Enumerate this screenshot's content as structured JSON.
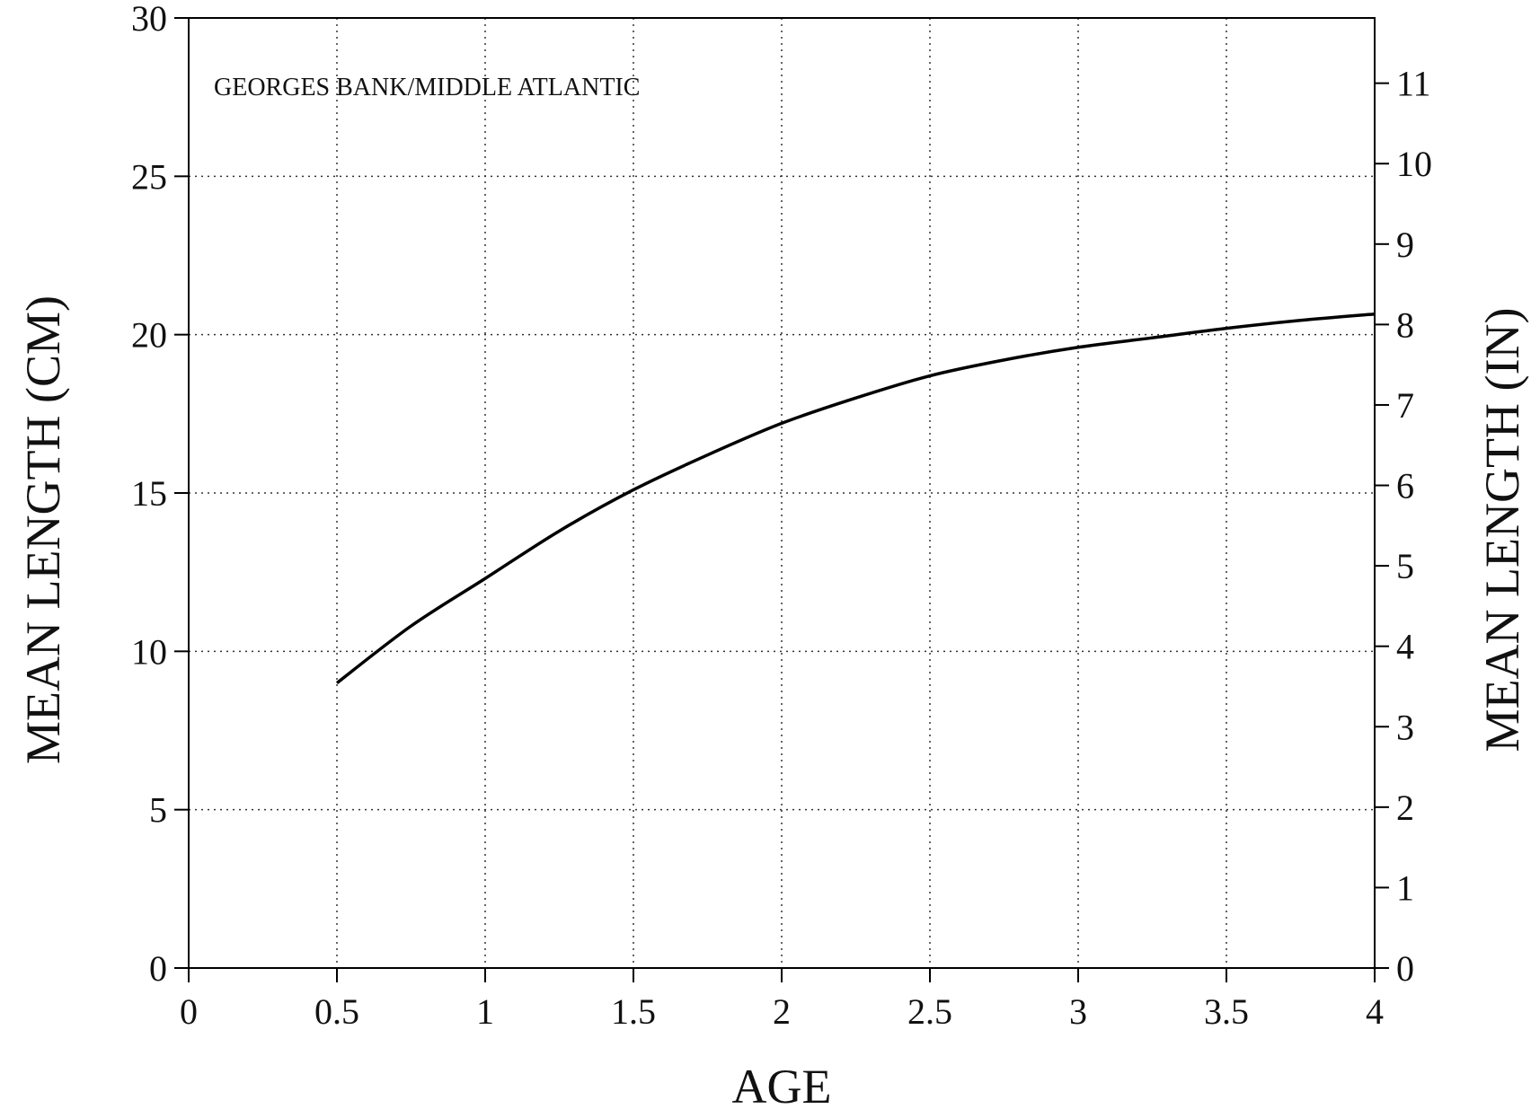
{
  "chart_data": {
    "type": "line",
    "annotation": "GEORGES BANK/MIDDLE ATLANTIC",
    "xlabel": "AGE",
    "ylabel": "MEAN LENGTH (CM)",
    "y2label": "MEAN LENGTH (IN)",
    "xlim": [
      0,
      4
    ],
    "ylim": [
      0,
      30
    ],
    "y2lim": [
      0,
      11.811
    ],
    "x_ticks": [
      "0",
      "0.5",
      "1",
      "1.5",
      "2",
      "2.5",
      "3",
      "3.5",
      "4"
    ],
    "y_ticks": [
      "0",
      "5",
      "10",
      "15",
      "20",
      "25",
      "30"
    ],
    "y2_ticks": [
      "0",
      "1",
      "2",
      "3",
      "4",
      "5",
      "6",
      "7",
      "8",
      "9",
      "10",
      "11"
    ],
    "grid": true,
    "series": [
      {
        "x": [
          0.5,
          0.75,
          1.0,
          1.25,
          1.5,
          1.75,
          2.0,
          2.25,
          2.5,
          2.75,
          3.0,
          3.25,
          3.5,
          3.75,
          4.0
        ],
        "y": [
          9.0,
          10.8,
          12.3,
          13.8,
          15.1,
          16.2,
          17.2,
          18.0,
          18.7,
          19.2,
          19.6,
          19.9,
          20.2,
          20.45,
          20.65
        ]
      }
    ],
    "colors": {
      "line": "#000000",
      "grid": "#333333",
      "axis": "#000000"
    }
  }
}
